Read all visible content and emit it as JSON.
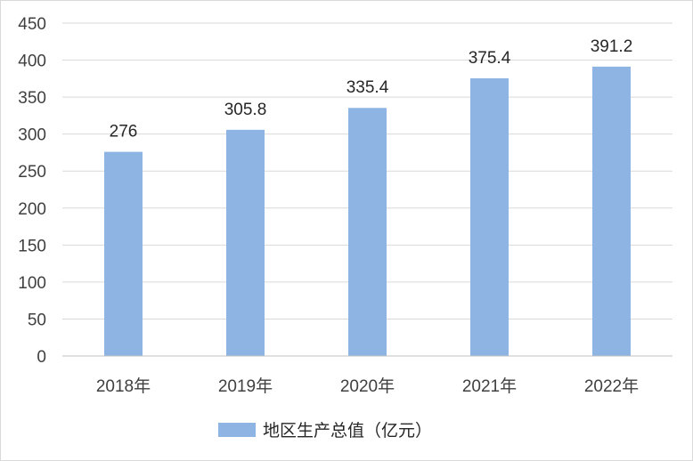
{
  "chart_data": {
    "type": "bar",
    "categories": [
      "2018年",
      "2019年",
      "2020年",
      "2021年",
      "2022年"
    ],
    "series": [
      {
        "name": "地区生产总值（亿元）",
        "values": [
          276,
          305.8,
          335.4,
          375.4,
          391.2
        ]
      }
    ],
    "data_labels": [
      "276",
      "305.8",
      "335.4",
      "375.4",
      "391.2"
    ],
    "yticks": [
      "0",
      "50",
      "100",
      "150",
      "200",
      "250",
      "300",
      "350",
      "400",
      "450"
    ],
    "ylim": [
      0,
      450
    ],
    "title": "",
    "xlabel": "",
    "ylabel": "",
    "grid": true,
    "legend_position": "bottom",
    "colors": {
      "bar": "#8eb4e3",
      "grid": "#d9d9d9",
      "axis": "#bfbfbf"
    }
  }
}
